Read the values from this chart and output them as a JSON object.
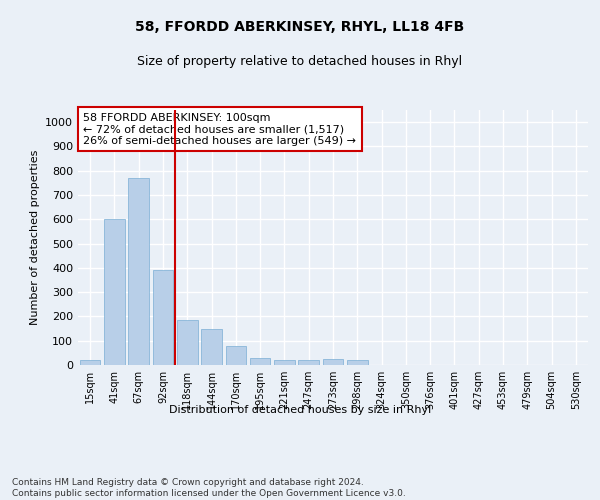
{
  "title": "58, FFORDD ABERKINSEY, RHYL, LL18 4FB",
  "subtitle": "Size of property relative to detached houses in Rhyl",
  "xlabel": "Distribution of detached houses by size in Rhyl",
  "ylabel": "Number of detached properties",
  "categories": [
    "15sqm",
    "41sqm",
    "67sqm",
    "92sqm",
    "118sqm",
    "144sqm",
    "170sqm",
    "195sqm",
    "221sqm",
    "247sqm",
    "273sqm",
    "298sqm",
    "324sqm",
    "350sqm",
    "376sqm",
    "401sqm",
    "427sqm",
    "453sqm",
    "479sqm",
    "504sqm",
    "530sqm"
  ],
  "values": [
    20,
    600,
    770,
    390,
    185,
    150,
    80,
    30,
    20,
    20,
    25,
    20,
    0,
    0,
    0,
    0,
    0,
    0,
    0,
    0,
    0
  ],
  "bar_color": "#b8cfe8",
  "bar_edge_color": "#7aaed4",
  "vline_x_index": 3,
  "vline_color": "#cc0000",
  "annotation_text": "58 FFORDD ABERKINSEY: 100sqm\n← 72% of detached houses are smaller (1,517)\n26% of semi-detached houses are larger (549) →",
  "annotation_box_facecolor": "#ffffff",
  "annotation_box_edgecolor": "#cc0000",
  "ylim": [
    0,
    1050
  ],
  "yticks": [
    0,
    100,
    200,
    300,
    400,
    500,
    600,
    700,
    800,
    900,
    1000
  ],
  "footer": "Contains HM Land Registry data © Crown copyright and database right 2024.\nContains public sector information licensed under the Open Government Licence v3.0.",
  "bg_color": "#eaf0f7",
  "plot_bg_color": "#eaf0f7",
  "grid_color": "#ffffff",
  "title_fontsize": 10,
  "subtitle_fontsize": 9,
  "footer_fontsize": 6.5
}
